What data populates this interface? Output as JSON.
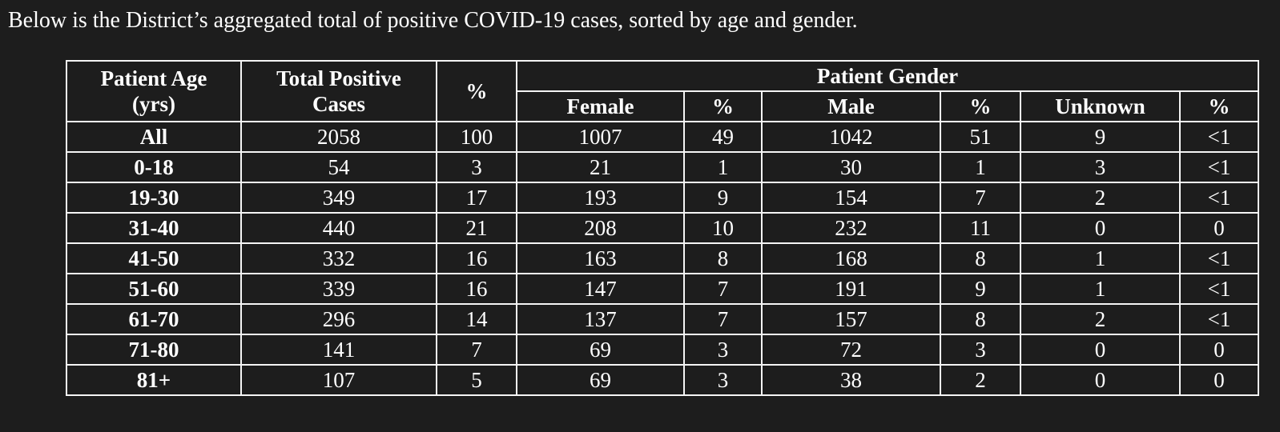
{
  "colors": {
    "background": "#1d1d1d",
    "text": "#ffffff",
    "border": "#f5f5f5"
  },
  "intro_text": "Below is the District’s aggregated total of positive COVID-19 cases, sorted by age and gender.",
  "table": {
    "header": {
      "age_line1": "Patient Age",
      "age_line2": "(yrs)",
      "total_line1": "Total Positive",
      "total_line2": "Cases",
      "percent": "%",
      "gender_group": "Patient Gender",
      "sub_columns": [
        "Female",
        "%",
        "Male",
        "%",
        "Unknown",
        "%"
      ]
    },
    "rows": [
      [
        "All",
        "2058",
        "100",
        "1007",
        "49",
        "1042",
        "51",
        "9",
        "<1"
      ],
      [
        "0-18",
        "54",
        "3",
        "21",
        "1",
        "30",
        "1",
        "3",
        "<1"
      ],
      [
        "19-30",
        "349",
        "17",
        "193",
        "9",
        "154",
        "7",
        "2",
        "<1"
      ],
      [
        "31-40",
        "440",
        "21",
        "208",
        "10",
        "232",
        "11",
        "0",
        "0"
      ],
      [
        "41-50",
        "332",
        "16",
        "163",
        "8",
        "168",
        "8",
        "1",
        "<1"
      ],
      [
        "51-60",
        "339",
        "16",
        "147",
        "7",
        "191",
        "9",
        "1",
        "<1"
      ],
      [
        "61-70",
        "296",
        "14",
        "137",
        "7",
        "157",
        "8",
        "2",
        "<1"
      ],
      [
        "71-80",
        "141",
        "7",
        "69",
        "3",
        "72",
        "3",
        "0",
        "0"
      ],
      [
        "81+",
        "107",
        "5",
        "69",
        "3",
        "38",
        "2",
        "0",
        "0"
      ]
    ]
  }
}
